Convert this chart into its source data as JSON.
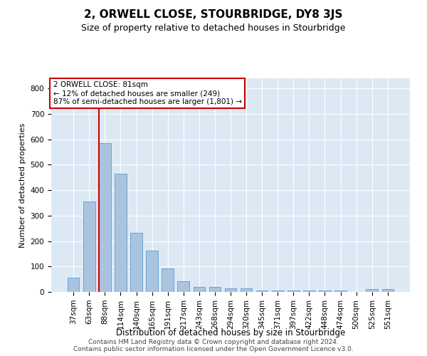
{
  "title": "2, ORWELL CLOSE, STOURBRIDGE, DY8 3JS",
  "subtitle": "Size of property relative to detached houses in Stourbridge",
  "xlabel": "Distribution of detached houses by size in Stourbridge",
  "ylabel": "Number of detached properties",
  "categories": [
    "37sqm",
    "63sqm",
    "88sqm",
    "114sqm",
    "140sqm",
    "165sqm",
    "191sqm",
    "217sqm",
    "243sqm",
    "268sqm",
    "294sqm",
    "320sqm",
    "345sqm",
    "371sqm",
    "397sqm",
    "422sqm",
    "448sqm",
    "474sqm",
    "500sqm",
    "525sqm",
    "551sqm"
  ],
  "values": [
    57,
    355,
    585,
    465,
    233,
    163,
    93,
    43,
    20,
    20,
    13,
    13,
    5,
    5,
    5,
    5,
    5,
    5,
    0,
    10,
    10
  ],
  "bar_color": "#aac4e0",
  "bar_edge_color": "#5b9bd5",
  "marker_line_color": "#cc0000",
  "annotation_text": "2 ORWELL CLOSE: 81sqm\n← 12% of detached houses are smaller (249)\n87% of semi-detached houses are larger (1,801) →",
  "annotation_box_color": "#ffffff",
  "annotation_box_edge_color": "#cc0000",
  "ylim": [
    0,
    840
  ],
  "yticks": [
    0,
    100,
    200,
    300,
    400,
    500,
    600,
    700,
    800
  ],
  "footer1": "Contains HM Land Registry data © Crown copyright and database right 2024.",
  "footer2": "Contains public sector information licensed under the Open Government Licence v3.0.",
  "bg_color": "#dce9f5",
  "fig_bg_color": "#ffffff",
  "title_fontsize": 11,
  "subtitle_fontsize": 9,
  "ylabel_fontsize": 8,
  "xlabel_fontsize": 8.5,
  "tick_fontsize": 7.5,
  "annotation_fontsize": 7.5,
  "footer_fontsize": 6.5
}
